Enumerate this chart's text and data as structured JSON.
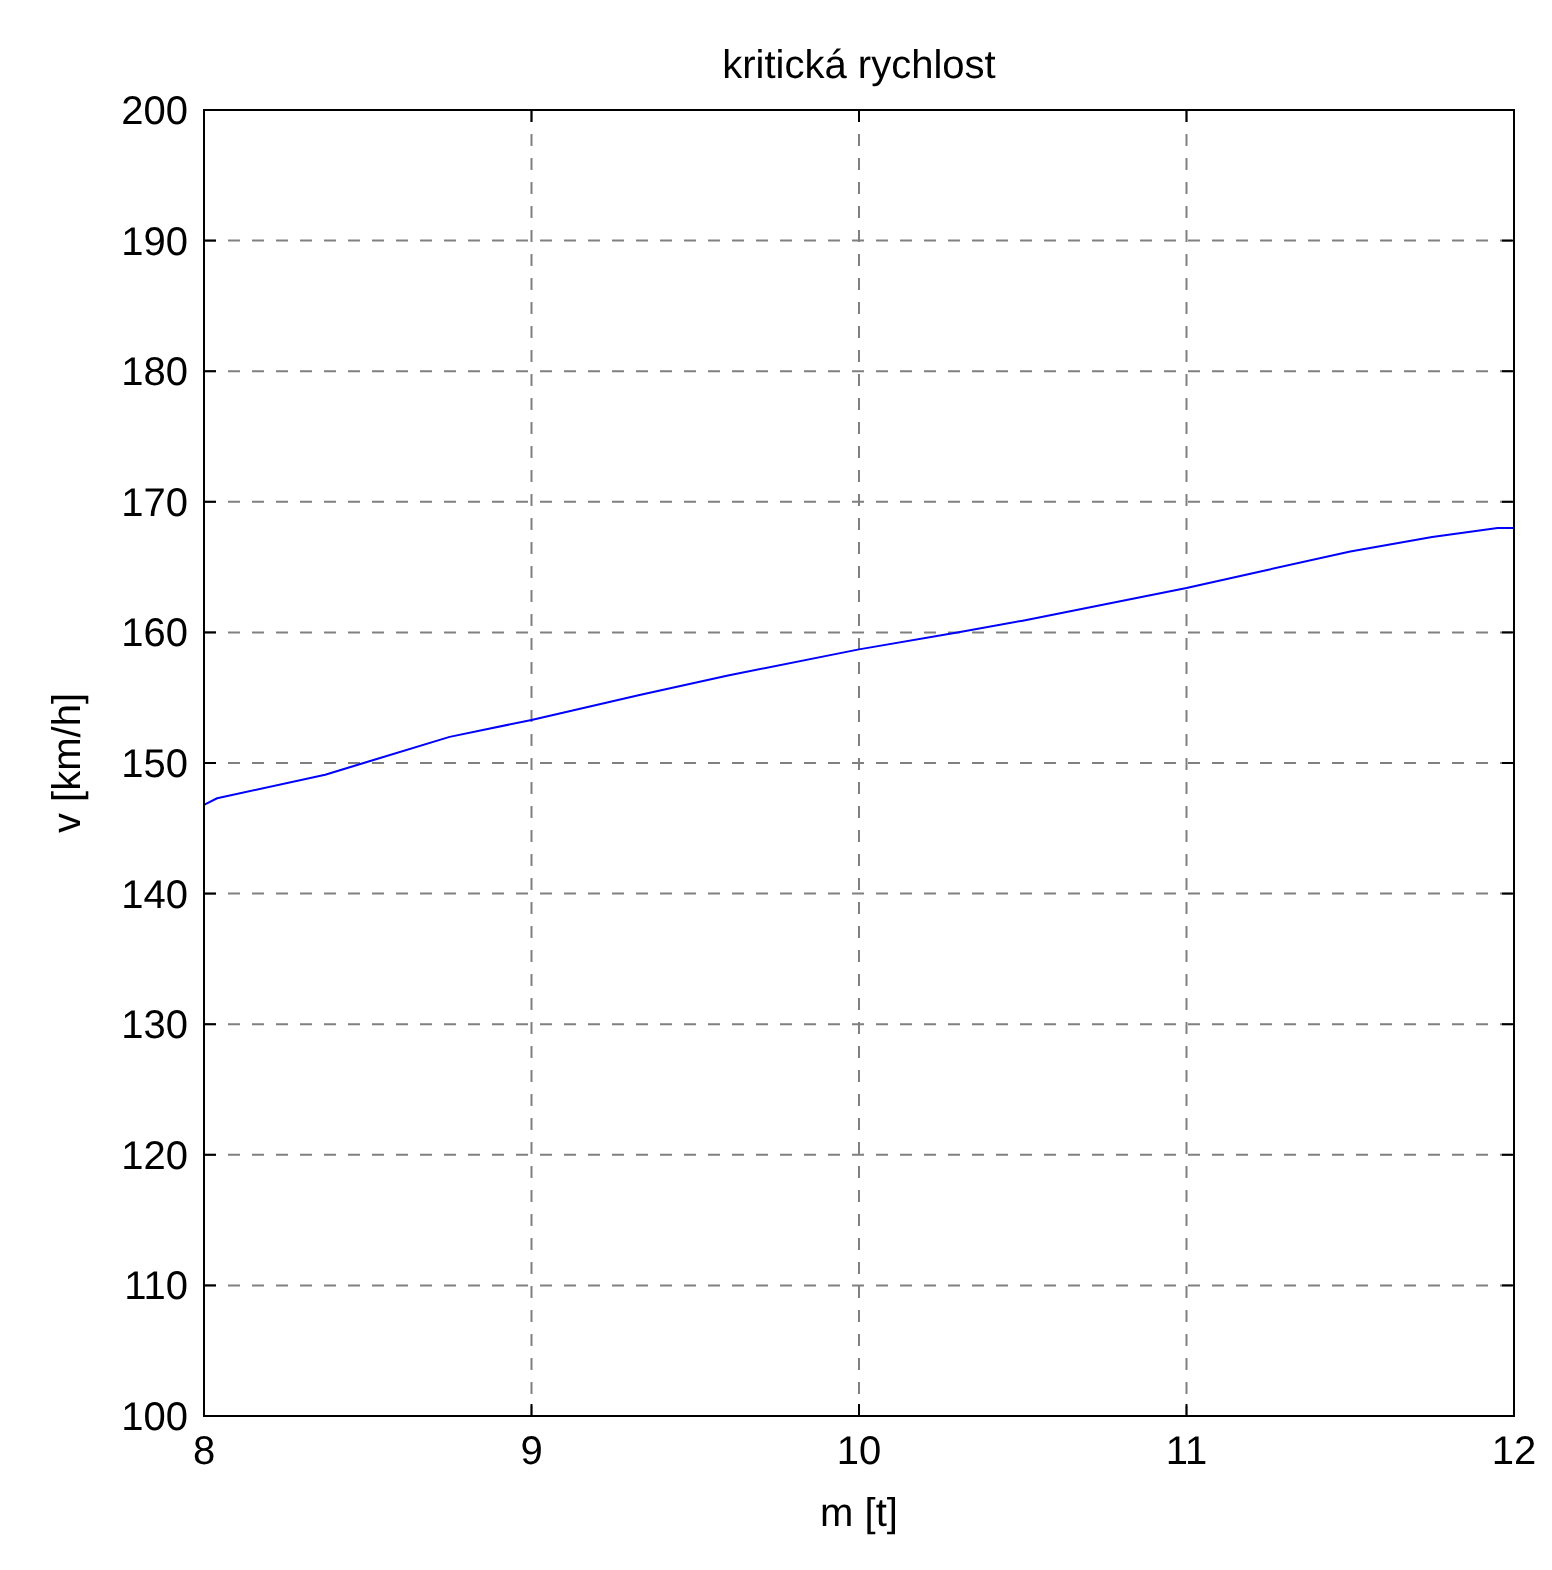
{
  "chart_data": {
    "type": "line",
    "title": "kritická rychlost",
    "xlabel": "m [t]",
    "ylabel": "v [km/h]",
    "xlim": [
      8,
      12
    ],
    "xticks": [
      8,
      9,
      10,
      11,
      12
    ],
    "ylim": [
      100,
      200
    ],
    "yticks": [
      100,
      110,
      120,
      130,
      140,
      150,
      160,
      170,
      180,
      190,
      200
    ],
    "grid": true,
    "series": [
      {
        "color": "#0000ff",
        "x": [
          8,
          8.04,
          8.37,
          8.5,
          8.75,
          9,
          9.33,
          9.6,
          10,
          10.3,
          10.5,
          11,
          11.25,
          11.5,
          11.75,
          11.95,
          12
        ],
        "values": [
          146.8,
          147.3,
          149.1,
          150.1,
          152.0,
          153.3,
          155.2,
          156.7,
          158.7,
          160.0,
          160.9,
          163.4,
          164.8,
          166.2,
          167.3,
          168.0,
          168.0
        ]
      }
    ]
  }
}
